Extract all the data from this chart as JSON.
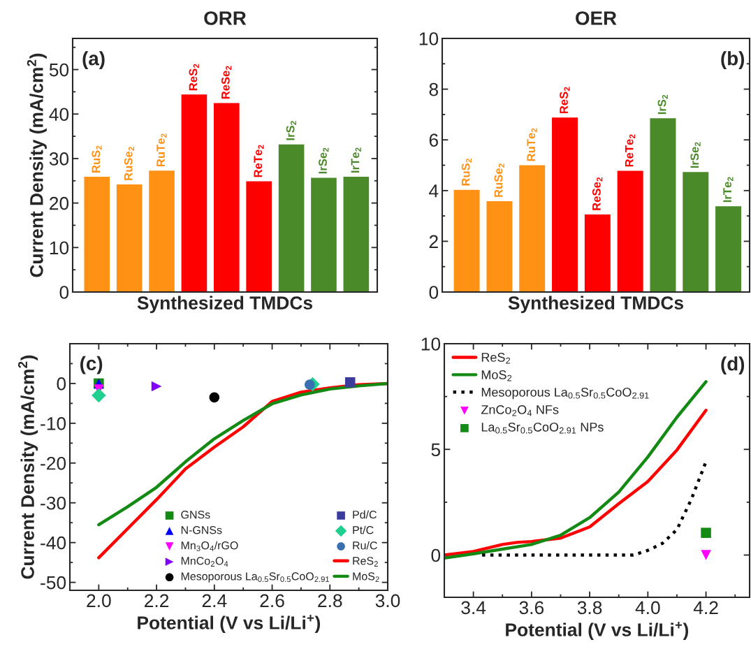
{
  "chart_data": [
    {
      "type": "bar",
      "title": "ORR",
      "xlabel": "Synthesized TMDCs",
      "ylabel": "Current Density (mA/cm$^{2}$)",
      "annotations": [
        "(a)"
      ],
      "categories": [
        "RuS$_{2}$",
        "RuSe$_{2}$",
        "RuTe$_{2}$",
        "ReS$_{2}$",
        "ReSe$_{2}$",
        "ReTe$_{2}$",
        "IrS$_{2}$",
        "IrSe$_{2}$",
        "IrTe$_{2}$"
      ],
      "values": [
        26,
        24.3,
        27.4,
        44.5,
        42.6,
        25,
        33.3,
        25.8,
        26
      ],
      "colors": [
        "#ff9214",
        "#ff9214",
        "#ff9214",
        "#ff0000",
        "#ff0000",
        "#ff0000",
        "#4a8a28",
        "#4a8a28",
        "#4a8a28"
      ],
      "ylim": [
        0,
        57
      ],
      "yticks": [
        0,
        10,
        20,
        30,
        40,
        50
      ]
    },
    {
      "type": "bar",
      "title": "OER",
      "xlabel": "Synthesized TMDCs",
      "annotations": [
        "(b)"
      ],
      "categories": [
        "RuS$_{2}$",
        "RuSe$_{2}$",
        "RuTe$_{2}$",
        "ReS$_{2}$",
        "ReSe$_{2}$",
        "ReTe$_{2}$",
        "IrS$_{2}$",
        "IrSe$_{2}$",
        "IrTe$_{2}$"
      ],
      "values": [
        4.05,
        3.6,
        5.02,
        6.9,
        3.08,
        4.8,
        6.87,
        4.75,
        3.4
      ],
      "colors": [
        "#ff9214",
        "#ff9214",
        "#ff9214",
        "#ff0000",
        "#ff0000",
        "#ff0000",
        "#4a8a28",
        "#4a8a28",
        "#4a8a28"
      ],
      "ylim": [
        0,
        10
      ],
      "yticks": [
        0,
        2,
        4,
        6,
        8,
        10
      ]
    },
    {
      "type": "line",
      "xlabel": "Potential (V vs Li/Li$^{+}$)",
      "ylabel": "Current Density (mA/cm$^{2}$)",
      "annotations": [
        "(c)"
      ],
      "xlim": [
        1.9,
        3.0
      ],
      "xticks": [
        {
          "value": 2,
          "label": "2.0"
        },
        2.2,
        2.4,
        2.6,
        2.8,
        {
          "value": 3,
          "label": "3.0"
        }
      ],
      "ylim": [
        -52,
        10
      ],
      "yticks": [
        -50,
        -40,
        -30,
        -20,
        -10,
        0
      ],
      "legend": "bottom right",
      "series": [
        {
          "name": "GNSs",
          "type": "scatter",
          "marker": "square",
          "color": "#138a13",
          "x": [
            2.0
          ],
          "values": [
            0
          ]
        },
        {
          "name": "N-GNSs",
          "type": "scatter",
          "marker": "triangle",
          "color": "#0000ff",
          "x": [
            2.0
          ],
          "values": [
            0
          ]
        },
        {
          "name": "Mn$_{3}$O$_{4}$/rGO",
          "type": "scatter",
          "marker": "triangle_down",
          "color": "#ff00ff",
          "x": [
            2.0
          ],
          "values": [
            -1.5
          ]
        },
        {
          "name": "MnCo$_{2}$O$_{4}$",
          "type": "scatter",
          "marker": "triangle_right",
          "color": "#8000ff",
          "x": [
            2.2
          ],
          "values": [
            -0.7
          ]
        },
        {
          "name": "Mesoporous La$_{0.5}$Sr$_{0.5}$CoO$_{2.91}$",
          "type": "scatter",
          "marker": "circle",
          "color": "#000000",
          "x": [
            2.4
          ],
          "values": [
            -3.5
          ]
        },
        {
          "name": "Pd/C",
          "type": "scatter",
          "marker": "square",
          "color": "#3c3c9c",
          "x": [
            2.87
          ],
          "values": [
            0.3
          ]
        },
        {
          "name": "Pt/C",
          "type": "scatter",
          "marker": "diamond",
          "color": "#20d090",
          "x": [
            2.0,
            2.74
          ],
          "values": [
            -3,
            -0.2
          ]
        },
        {
          "name": "Ru/C",
          "type": "scatter",
          "marker": "circle",
          "color": "#3a6fb0",
          "x": [
            2.73
          ],
          "values": [
            -0.3
          ]
        },
        {
          "name": "ReS$_{2}$",
          "type": "line",
          "line_style": "solid",
          "color": "#ff0000",
          "x": [
            2.0,
            2.1,
            2.2,
            2.3,
            2.4,
            2.5,
            2.6,
            2.7,
            2.8,
            2.9,
            3.0
          ],
          "values": [
            -43.8,
            -36.5,
            -29.2,
            -21.5,
            -16,
            -10.9,
            -4.5,
            -2.2,
            -1.1,
            -0.3,
            0
          ]
        },
        {
          "name": "MoS$_{2}$",
          "type": "line",
          "line_style": "solid",
          "color": "#138a13",
          "x": [
            2.0,
            2.1,
            2.2,
            2.3,
            2.4,
            2.5,
            2.6,
            2.7,
            2.8,
            2.9,
            3.0
          ],
          "values": [
            -35.5,
            -31,
            -26.1,
            -19.7,
            -13.9,
            -9.3,
            -5.1,
            -2.9,
            -1.4,
            -0.6,
            0
          ]
        }
      ]
    },
    {
      "type": "line",
      "xlabel": "Potential (V vs Li/Li$^{+}$)",
      "annotations": [
        "(d)"
      ],
      "xlim": [
        3.3,
        4.35
      ],
      "xticks": [
        3.4,
        3.6,
        3.8,
        {
          "value": 4,
          "label": "4.0"
        },
        4.2
      ],
      "ylim": [
        -2,
        10
      ],
      "yticks": [
        0,
        5,
        10
      ],
      "legend": "top left",
      "series": [
        {
          "name": "ReS$_{2}$",
          "type": "line",
          "line_style": "solid",
          "color": "#ff0000",
          "x": [
            3.3,
            3.4,
            3.5,
            3.55,
            3.6,
            3.7,
            3.8,
            3.9,
            4.0,
            4.1,
            4.2
          ],
          "values": [
            0,
            0.17,
            0.5,
            0.6,
            0.64,
            0.8,
            1.33,
            2.43,
            3.48,
            4.97,
            6.85
          ]
        },
        {
          "name": "MoS$_{2}$",
          "type": "line",
          "line_style": "solid",
          "color": "#138a13",
          "x": [
            3.3,
            3.4,
            3.5,
            3.6,
            3.7,
            3.8,
            3.9,
            4.0,
            4.1,
            4.2
          ],
          "values": [
            -0.14,
            0.06,
            0.28,
            0.5,
            0.94,
            1.77,
            2.98,
            4.64,
            6.52,
            8.2
          ]
        },
        {
          "name": "Mesoporous La$_{0.5}$Sr$_{0.5}$CoO$_{2.91}$",
          "type": "line",
          "line_style": "dotted",
          "color": "#000000",
          "x": [
            3.43,
            3.95,
            4.0,
            4.05,
            4.1,
            4.15,
            4.2
          ],
          "values": [
            0,
            0,
            0.22,
            0.55,
            1.2,
            2.65,
            4.42
          ]
        },
        {
          "name": "ZnCo$_{2}$O$_{4}$ NFs",
          "type": "scatter",
          "marker": "triangle_down",
          "color": "#ff00ff",
          "x": [
            4.2
          ],
          "values": [
            0
          ]
        },
        {
          "name": "La$_{0.5}$Sr$_{0.5}$CoO$_{2.91}$ NPs",
          "type": "scatter",
          "marker": "square",
          "color": "#138a13",
          "x": [
            4.2
          ],
          "values": [
            1.05
          ]
        }
      ]
    }
  ]
}
